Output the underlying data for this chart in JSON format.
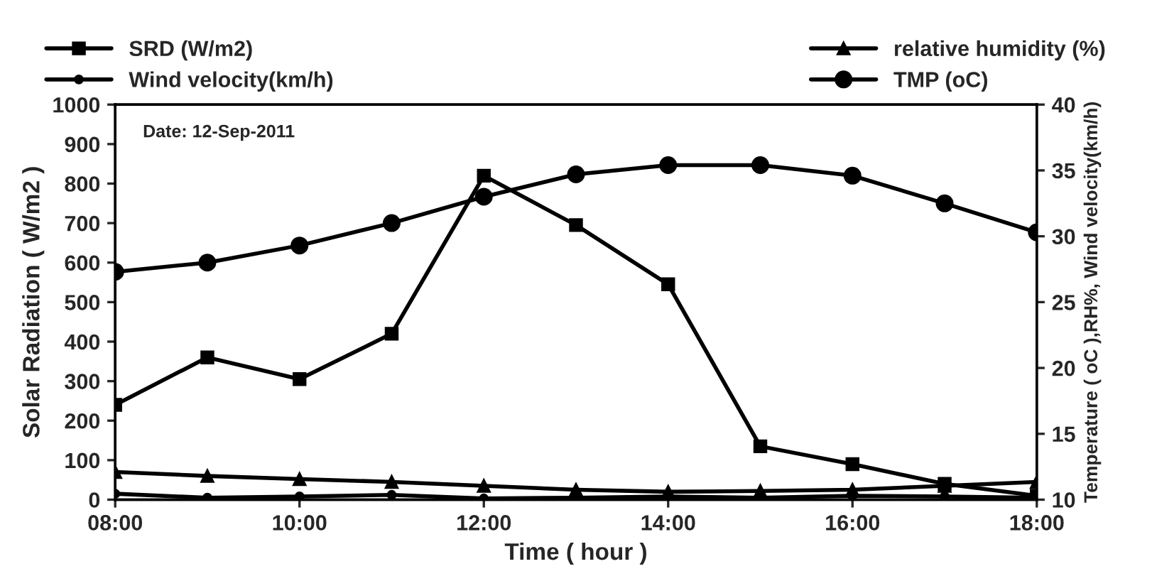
{
  "chart_data": {
    "type": "line",
    "xlabel": "Time ( hour )",
    "ylabel": "Solar Radiation ( W/m2 )",
    "y2label": "Temperature ( oC ),RH%, Wind velocity(km/h)",
    "annotations": [
      "Date: 12-Sep-2011"
    ],
    "x": [
      8,
      9,
      10,
      11,
      12,
      13,
      14,
      15,
      16,
      17,
      18
    ],
    "xlim": [
      8,
      18
    ],
    "xticks": [
      {
        "value": 8,
        "label": "08:00"
      },
      {
        "value": 10,
        "label": "10:00"
      },
      {
        "value": 12,
        "label": "12:00"
      },
      {
        "value": 14,
        "label": "14:00"
      },
      {
        "value": 16,
        "label": "16:00"
      },
      {
        "value": 18,
        "label": "18:00"
      }
    ],
    "ylim": [
      0,
      1000
    ],
    "yticks": [
      0,
      100,
      200,
      300,
      400,
      500,
      600,
      700,
      800,
      900,
      1000
    ],
    "y2lim": [
      10,
      40
    ],
    "y2ticks": [
      10,
      15,
      20,
      25,
      30,
      35,
      40
    ],
    "legend": "top",
    "grid": false,
    "line_style": "solid",
    "series": [
      {
        "name": "SRD (W/m2)",
        "color": "#000000",
        "marker": "square",
        "values": [
          240,
          360,
          305,
          420,
          820,
          695,
          545,
          135,
          90,
          40,
          10
        ]
      },
      {
        "name": "Wind velocity(km/h)",
        "color": "#000000",
        "marker": "circle",
        "values": [
          15,
          5,
          8,
          12,
          3,
          5,
          8,
          5,
          10,
          8,
          5
        ]
      },
      {
        "name": "relative humidity (%)",
        "color": "#000000",
        "marker": "triangle",
        "values": [
          70,
          60,
          52,
          45,
          35,
          25,
          20,
          22,
          25,
          35,
          45
        ]
      },
      {
        "name": "TMP (oC)",
        "color": "#000000",
        "marker": "circle",
        "axis": "y2",
        "values": [
          27.3,
          28.0,
          29.3,
          31.0,
          33.0,
          34.7,
          35.4,
          35.4,
          34.6,
          32.5,
          30.3
        ]
      }
    ]
  }
}
